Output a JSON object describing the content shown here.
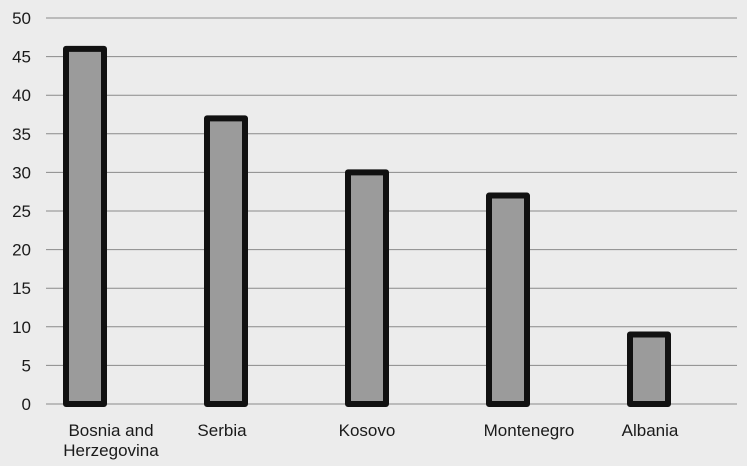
{
  "colors": {
    "background": "#ececec",
    "gridline": "#8a8a8a",
    "bar_fill": "#9b9b9b",
    "bar_outline": "#111111",
    "text": "#1a1a1a"
  },
  "chart_data": {
    "type": "bar",
    "categories": [
      "Bosnia and Herzegovina",
      "Serbia",
      "Kosovo",
      "Montenegro",
      "Albania"
    ],
    "category_label_lines": [
      [
        "Bosnia and",
        "Herzegovina"
      ],
      [
        "Serbia"
      ],
      [
        "Kosovo"
      ],
      [
        "Montenegro"
      ],
      [
        "Albania"
      ]
    ],
    "values": [
      46,
      37,
      30,
      27,
      9
    ],
    "title": "",
    "xlabel": "",
    "ylabel": "",
    "ylim": [
      0,
      50
    ],
    "yticks": [
      0,
      5,
      10,
      15,
      20,
      25,
      30,
      35,
      40,
      45,
      50
    ],
    "grid": true,
    "legend": "none"
  }
}
